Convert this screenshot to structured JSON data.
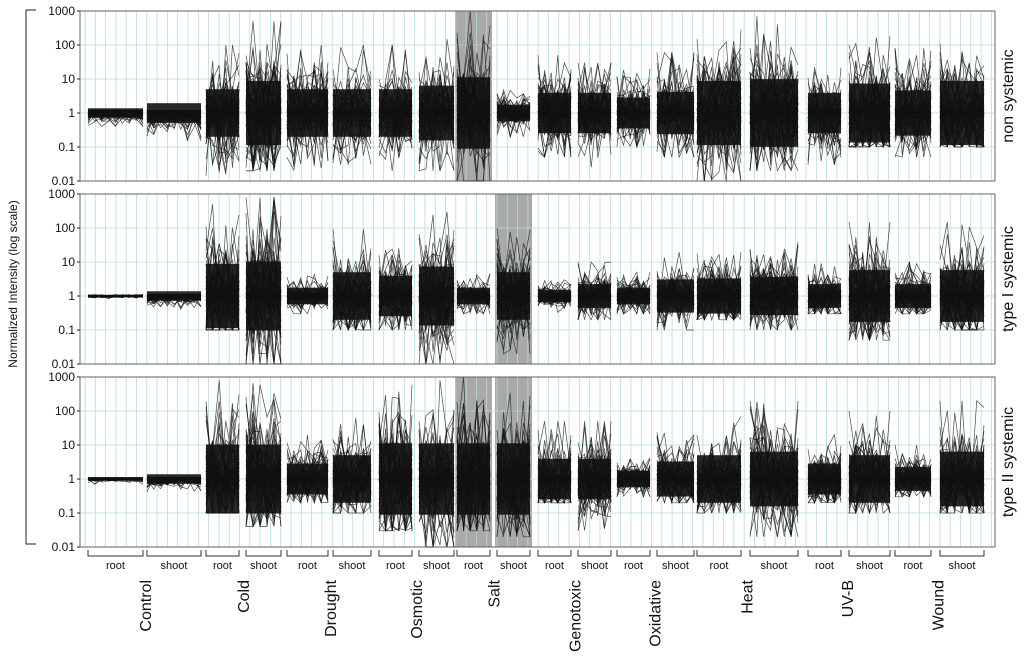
{
  "chart_data": {
    "type": "line",
    "ylabel": "Normalized Intensity (log scale)",
    "yscale": "log",
    "ylim": [
      0.01,
      1000
    ],
    "yticks": [
      "1000",
      "100",
      "10",
      "1",
      "0.1",
      "0.01"
    ],
    "grid": true,
    "conditions": [
      "Control",
      "Cold",
      "Drought",
      "Osmotic",
      "Salt",
      "Genotoxic",
      "Oxidative",
      "Heat",
      "UV-B",
      "Wound"
    ],
    "tissues": [
      "root",
      "shoot"
    ],
    "panels": [
      {
        "name": "non systemic",
        "highlighted": [
          "Salt/root"
        ],
        "groups": [
          {
            "condition": "Control",
            "tissue": "root",
            "median": 1,
            "low": 0.4,
            "high": 1.2
          },
          {
            "condition": "Control",
            "tissue": "shoot",
            "median": 1,
            "low": 0.15,
            "high": 1.2
          },
          {
            "condition": "Cold",
            "tissue": "root",
            "median": 1,
            "low": 0.01,
            "high": 100
          },
          {
            "condition": "Cold",
            "tissue": "shoot",
            "median": 1,
            "low": 0.02,
            "high": 500
          },
          {
            "condition": "Drought",
            "tissue": "root",
            "median": 1,
            "low": 0.02,
            "high": 100
          },
          {
            "condition": "Drought",
            "tissue": "shoot",
            "median": 1,
            "low": 0.03,
            "high": 100
          },
          {
            "condition": "Osmotic",
            "tissue": "root",
            "median": 1,
            "low": 0.01,
            "high": 100
          },
          {
            "condition": "Osmotic",
            "tissue": "shoot",
            "median": 1,
            "low": 0.02,
            "high": 200
          },
          {
            "condition": "Salt",
            "tissue": "root",
            "median": 1,
            "low": 0.01,
            "high": 1000
          },
          {
            "condition": "Salt",
            "tissue": "shoot",
            "median": 1,
            "low": 0.2,
            "high": 5
          },
          {
            "condition": "Genotoxic",
            "tissue": "root",
            "median": 1,
            "low": 0.05,
            "high": 50
          },
          {
            "condition": "Genotoxic",
            "tissue": "shoot",
            "median": 1,
            "low": 0.02,
            "high": 30
          },
          {
            "condition": "Oxidative",
            "tissue": "root",
            "median": 1,
            "low": 0.1,
            "high": 20
          },
          {
            "condition": "Oxidative",
            "tissue": "shoot",
            "median": 1,
            "low": 0.05,
            "high": 60
          },
          {
            "condition": "Heat",
            "tissue": "root",
            "median": 1,
            "low": 0.01,
            "high": 500
          },
          {
            "condition": "Heat",
            "tissue": "shoot",
            "median": 1,
            "low": 0.02,
            "high": 700
          },
          {
            "condition": "UV-B",
            "tissue": "root",
            "median": 1,
            "low": 0.03,
            "high": 50
          },
          {
            "condition": "UV-B",
            "tissue": "shoot",
            "median": 1,
            "low": 0.1,
            "high": 300
          },
          {
            "condition": "Wound",
            "tissue": "root",
            "median": 1,
            "low": 0.05,
            "high": 80
          },
          {
            "condition": "Wound",
            "tissue": "shoot",
            "median": 1,
            "low": 0.1,
            "high": 500
          }
        ]
      },
      {
        "name": "type I systemic",
        "highlighted": [
          "Salt/shoot"
        ],
        "groups": [
          {
            "condition": "Control",
            "tissue": "root",
            "median": 1,
            "low": 0.8,
            "high": 1.1
          },
          {
            "condition": "Control",
            "tissue": "shoot",
            "median": 1,
            "low": 0.4,
            "high": 1.1
          },
          {
            "condition": "Cold",
            "tissue": "root",
            "median": 1,
            "low": 0.1,
            "high": 500
          },
          {
            "condition": "Cold",
            "tissue": "shoot",
            "median": 1,
            "low": 0.01,
            "high": 800
          },
          {
            "condition": "Drought",
            "tissue": "root",
            "median": 1,
            "low": 0.3,
            "high": 5
          },
          {
            "condition": "Drought",
            "tissue": "shoot",
            "median": 1,
            "low": 0.1,
            "high": 100
          },
          {
            "condition": "Osmotic",
            "tissue": "root",
            "median": 1,
            "low": 0.1,
            "high": 50
          },
          {
            "condition": "Osmotic",
            "tissue": "shoot",
            "median": 1,
            "low": 0.01,
            "high": 300
          },
          {
            "condition": "Salt",
            "tissue": "root",
            "median": 1,
            "low": 0.3,
            "high": 5
          },
          {
            "condition": "Salt",
            "tissue": "shoot",
            "median": 1,
            "low": 0.02,
            "high": 100
          },
          {
            "condition": "Genotoxic",
            "tissue": "root",
            "median": 1,
            "low": 0.3,
            "high": 3
          },
          {
            "condition": "Genotoxic",
            "tissue": "shoot",
            "median": 1,
            "low": 0.2,
            "high": 10
          },
          {
            "condition": "Oxidative",
            "tissue": "root",
            "median": 1,
            "low": 0.3,
            "high": 5
          },
          {
            "condition": "Oxidative",
            "tissue": "shoot",
            "median": 1,
            "low": 0.1,
            "high": 25
          },
          {
            "condition": "Heat",
            "tissue": "root",
            "median": 1,
            "low": 0.2,
            "high": 30
          },
          {
            "condition": "Heat",
            "tissue": "shoot",
            "median": 1,
            "low": 0.1,
            "high": 40
          },
          {
            "condition": "UV-B",
            "tissue": "root",
            "median": 1,
            "low": 0.3,
            "high": 10
          },
          {
            "condition": "UV-B",
            "tissue": "shoot",
            "median": 1,
            "low": 0.05,
            "high": 150
          },
          {
            "condition": "Wound",
            "tissue": "root",
            "median": 1,
            "low": 0.3,
            "high": 10
          },
          {
            "condition": "Wound",
            "tissue": "shoot",
            "median": 1,
            "low": 0.1,
            "high": 150
          }
        ]
      },
      {
        "name": "type II systemic",
        "highlighted": [
          "Salt/root",
          "Salt/shoot"
        ],
        "groups": [
          {
            "condition": "Control",
            "tissue": "root",
            "median": 1,
            "low": 0.7,
            "high": 1.1
          },
          {
            "condition": "Control",
            "tissue": "shoot",
            "median": 1,
            "low": 0.4,
            "high": 1.1
          },
          {
            "condition": "Cold",
            "tissue": "root",
            "median": 1,
            "low": 0.1,
            "high": 800
          },
          {
            "condition": "Cold",
            "tissue": "shoot",
            "median": 1,
            "low": 0.04,
            "high": 800
          },
          {
            "condition": "Drought",
            "tissue": "root",
            "median": 1,
            "low": 0.2,
            "high": 20
          },
          {
            "condition": "Drought",
            "tissue": "shoot",
            "median": 1,
            "low": 0.1,
            "high": 100
          },
          {
            "condition": "Osmotic",
            "tissue": "root",
            "median": 1,
            "low": 0.03,
            "high": 1000
          },
          {
            "condition": "Osmotic",
            "tissue": "shoot",
            "median": 1,
            "low": 0.01,
            "high": 1000
          },
          {
            "condition": "Salt",
            "tissue": "root",
            "median": 1,
            "low": 0.03,
            "high": 1000
          },
          {
            "condition": "Salt",
            "tissue": "shoot",
            "median": 1,
            "low": 0.02,
            "high": 1000
          },
          {
            "condition": "Genotoxic",
            "tissue": "root",
            "median": 1,
            "low": 0.2,
            "high": 50
          },
          {
            "condition": "Genotoxic",
            "tissue": "shoot",
            "median": 1,
            "low": 0.03,
            "high": 50
          },
          {
            "condition": "Oxidative",
            "tissue": "root",
            "median": 1,
            "low": 0.3,
            "high": 5
          },
          {
            "condition": "Oxidative",
            "tissue": "shoot",
            "median": 1,
            "low": 0.2,
            "high": 30
          },
          {
            "condition": "Heat",
            "tissue": "root",
            "median": 1,
            "low": 0.1,
            "high": 100
          },
          {
            "condition": "Heat",
            "tissue": "shoot",
            "median": 1,
            "low": 0.02,
            "high": 200
          },
          {
            "condition": "UV-B",
            "tissue": "root",
            "median": 1,
            "low": 0.2,
            "high": 20
          },
          {
            "condition": "UV-B",
            "tissue": "shoot",
            "median": 1,
            "low": 0.1,
            "high": 100
          },
          {
            "condition": "Wound",
            "tissue": "root",
            "median": 1,
            "low": 0.3,
            "high": 10
          },
          {
            "condition": "Wound",
            "tissue": "shoot",
            "median": 1,
            "low": 0.1,
            "high": 200
          }
        ]
      }
    ]
  },
  "colors": {
    "lines": "#111111",
    "highlight": "#a9a9a9",
    "grid": "#b9dada",
    "frame": "#444444"
  }
}
